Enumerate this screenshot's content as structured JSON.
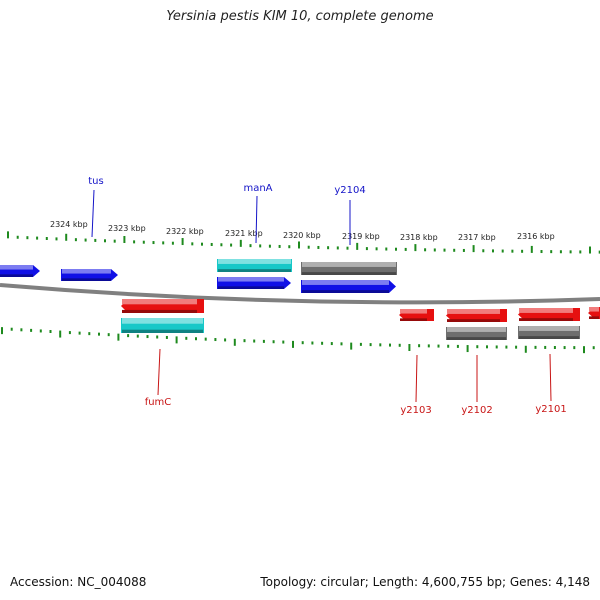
{
  "title": "Yersinia pestis KIM 10, complete genome",
  "accession_text": "Accession: NC_004088",
  "topology_text": "Topology: circular; Length: 4,600,755 bp; Genes: 4,148",
  "colors": {
    "forward_gene": "#1010e6",
    "reverse_gene": "#e61010",
    "cds_cyan": "#17c8c8",
    "cds_gray": "#6e6e6e",
    "tick": "#1e8a1e",
    "backbone": "#808080",
    "forward_label": "#1515c8",
    "reverse_label": "#c81515"
  },
  "kbp_labels": [
    "2324 kbp",
    "2323 kbp",
    "2322 kbp",
    "2321 kbp",
    "2320 kbp",
    "2319 kbp",
    "2318 kbp",
    "2317 kbp",
    "2316 kbp"
  ],
  "genes": [
    {
      "label": "tus",
      "strand": "forward"
    },
    {
      "label": "manA",
      "strand": "forward"
    },
    {
      "label": "y2104",
      "strand": "forward"
    },
    {
      "label": "fumC",
      "strand": "reverse"
    },
    {
      "label": "y2103",
      "strand": "reverse"
    },
    {
      "label": "y2102",
      "strand": "reverse"
    },
    {
      "label": "y2101",
      "strand": "reverse"
    }
  ]
}
